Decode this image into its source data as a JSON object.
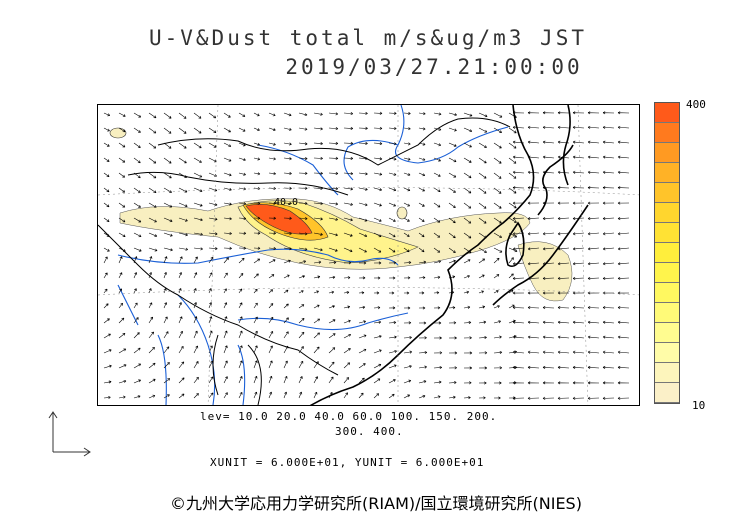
{
  "title": {
    "line1": "U-V&Dust total m/s&ug/m3 JST",
    "line2": "2019/03/27.21:00:00"
  },
  "legend": {
    "max": "400",
    "min": "10",
    "colors": [
      "#ff5a1a",
      "#ff7a1e",
      "#ff9a22",
      "#ffb226",
      "#ffc42a",
      "#ffd62e",
      "#ffe234",
      "#ffee3c",
      "#fff44c",
      "#fff860",
      "#fffa78",
      "#fffc90",
      "#fffca8",
      "#fdf5bc",
      "#fbf0c8"
    ]
  },
  "contour_label": "40.0",
  "levels": {
    "line1": "lev= 10.0 20.0 40.0 60.0 100. 150. 200.",
    "line2": "300. 400."
  },
  "units": "XUNIT = 6.000E+01, YUNIT = 6.000E+01",
  "credit": "©九州大学応用力学研究所(RIAM)/国立環境研究所(NIES)"
}
